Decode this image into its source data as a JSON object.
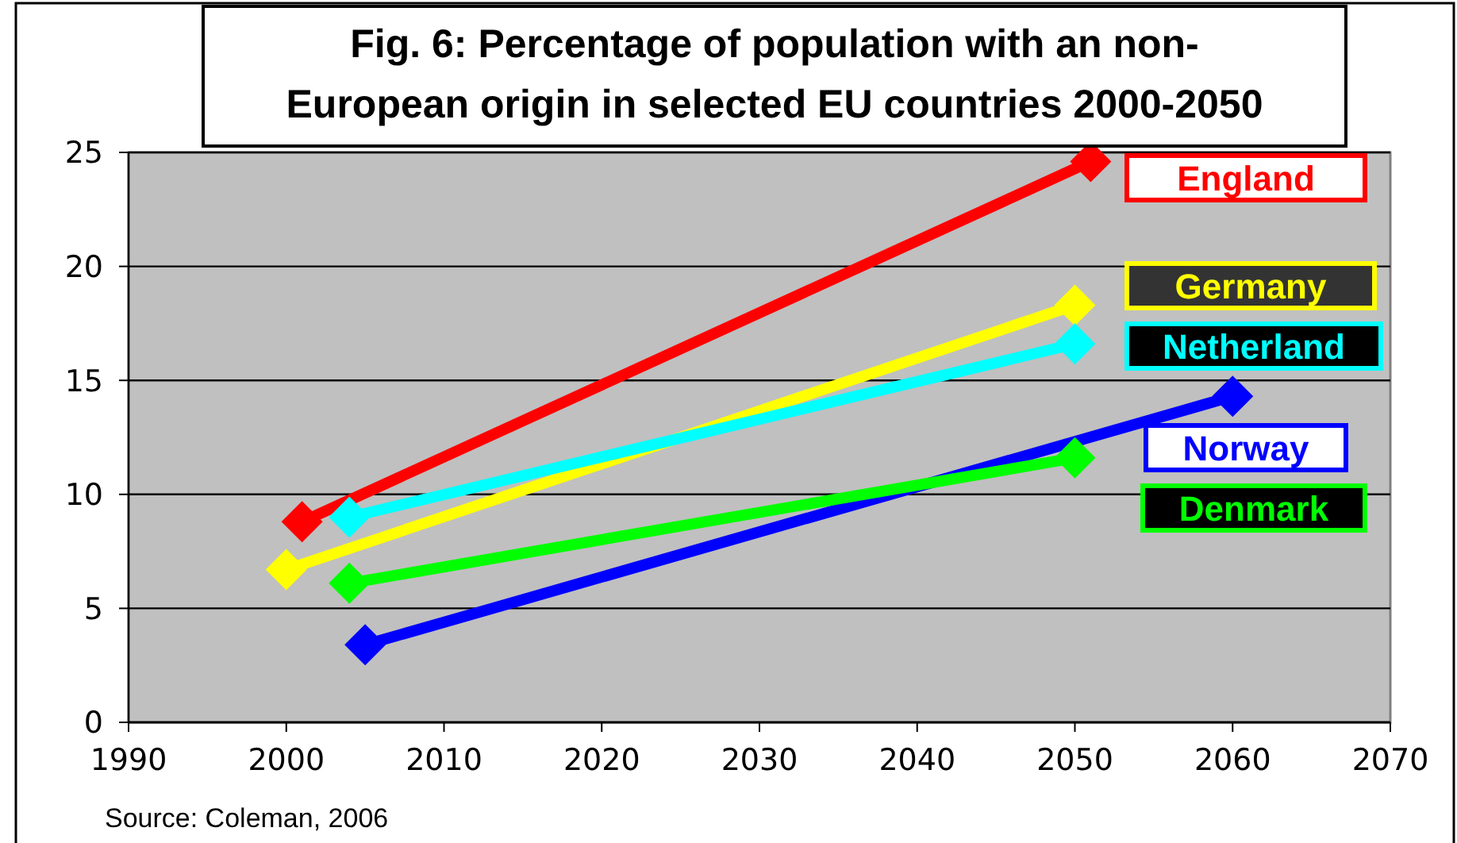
{
  "chart_data": {
    "type": "line",
    "title": "Fig. 6: Percentage of population with an non-European origin in selected EU countries 2000-2050",
    "xlim": [
      1990,
      2070
    ],
    "xticks": [
      1990,
      2000,
      2010,
      2020,
      2030,
      2040,
      2050,
      2060,
      2070
    ],
    "ylim": [
      0,
      25
    ],
    "yticks": [
      0,
      5,
      10,
      15,
      20,
      25
    ],
    "grid": "y",
    "marker": "diamond",
    "line_style": "solid",
    "legend": false,
    "annotations": [
      "Source: Coleman, 2006"
    ],
    "series": [
      {
        "name": "England",
        "color": "#ff0000",
        "x": [
          2001,
          2051
        ],
        "values": [
          8.8,
          24.6
        ]
      },
      {
        "name": "Germany",
        "color": "#ffff00",
        "x": [
          2000,
          2050
        ],
        "values": [
          6.7,
          18.3
        ]
      },
      {
        "name": "Netherland",
        "color": "#00ffff",
        "x": [
          2004,
          2050
        ],
        "values": [
          9.0,
          16.6
        ]
      },
      {
        "name": "Norway",
        "color": "#0000ff",
        "x": [
          2005,
          2060
        ],
        "values": [
          3.4,
          14.3
        ]
      },
      {
        "name": "Denmark",
        "color": "#00ff00",
        "x": [
          2004,
          2050
        ],
        "values": [
          6.1,
          11.6
        ]
      }
    ]
  }
}
